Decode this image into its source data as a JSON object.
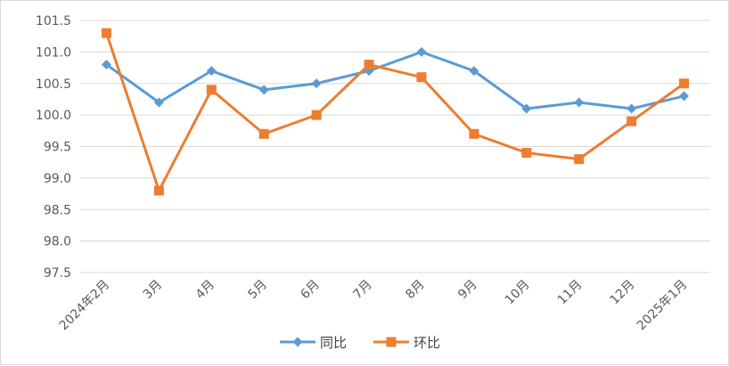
{
  "chart_data": {
    "type": "line",
    "categories": [
      "2024年2月",
      "3月",
      "4月",
      "5月",
      "6月",
      "7月",
      "8月",
      "9月",
      "10月",
      "11月",
      "12月",
      "2025年1月"
    ],
    "series": [
      {
        "name": "同比",
        "color": "#5b9bd5",
        "marker": "diamond",
        "values": [
          100.8,
          100.2,
          100.7,
          100.4,
          100.5,
          100.7,
          101.0,
          100.7,
          100.1,
          100.2,
          100.1,
          100.3
        ]
      },
      {
        "name": "环比",
        "color": "#ed7d31",
        "marker": "square",
        "values": [
          101.3,
          98.8,
          100.4,
          99.7,
          100.0,
          100.8,
          100.6,
          99.7,
          99.4,
          99.3,
          99.9,
          100.5
        ]
      }
    ],
    "yticks": [
      "97.5",
      "98.0",
      "98.5",
      "99.0",
      "99.5",
      "100.0",
      "100.5",
      "101.0",
      "101.5"
    ],
    "ylim": [
      97.5,
      101.5
    ],
    "grid": true,
    "legend_position": "bottom"
  }
}
